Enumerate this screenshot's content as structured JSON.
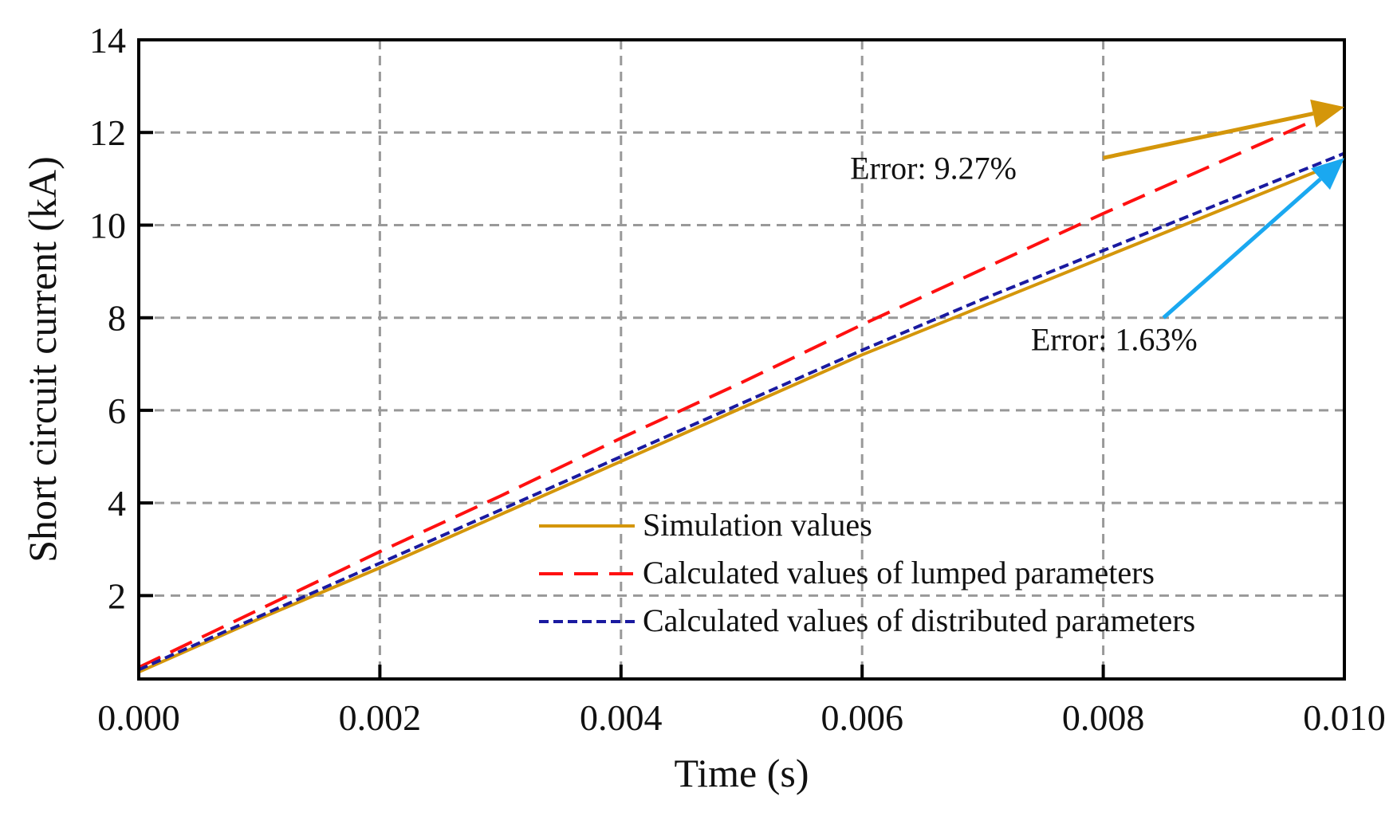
{
  "chart_data": {
    "type": "line",
    "title": "",
    "xlabel": "Time (s)",
    "ylabel": "Short circuit current (kA)",
    "xlim": [
      0.0,
      0.01
    ],
    "ylim": [
      0.2,
      14
    ],
    "xticks": [
      0.0,
      0.002,
      0.004,
      0.006,
      0.008,
      0.01
    ],
    "xtick_labels": [
      "0.000",
      "0.002",
      "0.004",
      "0.006",
      "0.008",
      "0.010"
    ],
    "yticks": [
      2,
      4,
      6,
      8,
      10,
      12,
      14
    ],
    "ytick_labels": [
      "2",
      "4",
      "6",
      "8",
      "10",
      "12",
      "14"
    ],
    "grid": true,
    "legend_position": "bottom-right",
    "series": [
      {
        "name": "Simulation values",
        "color": "#D4960A",
        "style": "solid",
        "x": [
          0.0,
          0.001,
          0.002,
          0.003,
          0.004,
          0.005,
          0.006,
          0.007,
          0.008,
          0.009,
          0.01
        ],
        "y": [
          0.35,
          1.5,
          2.6,
          3.75,
          4.9,
          6.05,
          7.2,
          8.25,
          9.3,
          10.35,
          11.4
        ]
      },
      {
        "name": "Calculated values of lumped parameters",
        "color": "#FF1010",
        "style": "dashed",
        "x": [
          0.0,
          0.001,
          0.002,
          0.003,
          0.004,
          0.005,
          0.006,
          0.007,
          0.008,
          0.009,
          0.01
        ],
        "y": [
          0.45,
          1.7,
          2.95,
          4.15,
          5.4,
          6.6,
          7.85,
          9.05,
          10.25,
          11.4,
          12.55
        ]
      },
      {
        "name": "Calculated values of distributed parameters",
        "color": "#1A1AA0",
        "style": "dotted",
        "x": [
          0.0,
          0.001,
          0.002,
          0.003,
          0.004,
          0.005,
          0.006,
          0.007,
          0.008,
          0.009,
          0.01
        ],
        "y": [
          0.4,
          1.55,
          2.7,
          3.85,
          5.0,
          6.15,
          7.3,
          8.4,
          9.45,
          10.5,
          11.55
        ]
      }
    ],
    "annotations": [
      {
        "text": "Error: 9.27%",
        "color": "#D4960A",
        "arrow_from": [
          0.008,
          11.45
        ],
        "arrow_to": [
          0.01,
          12.55
        ],
        "label_at": [
          0.0059,
          11.0
        ]
      },
      {
        "text": "Error: 1.63%",
        "color": "#1AA8F0",
        "arrow_from": [
          0.0085,
          8.0
        ],
        "arrow_to": [
          0.01,
          11.45
        ],
        "label_at": [
          0.0074,
          7.3
        ]
      }
    ]
  }
}
